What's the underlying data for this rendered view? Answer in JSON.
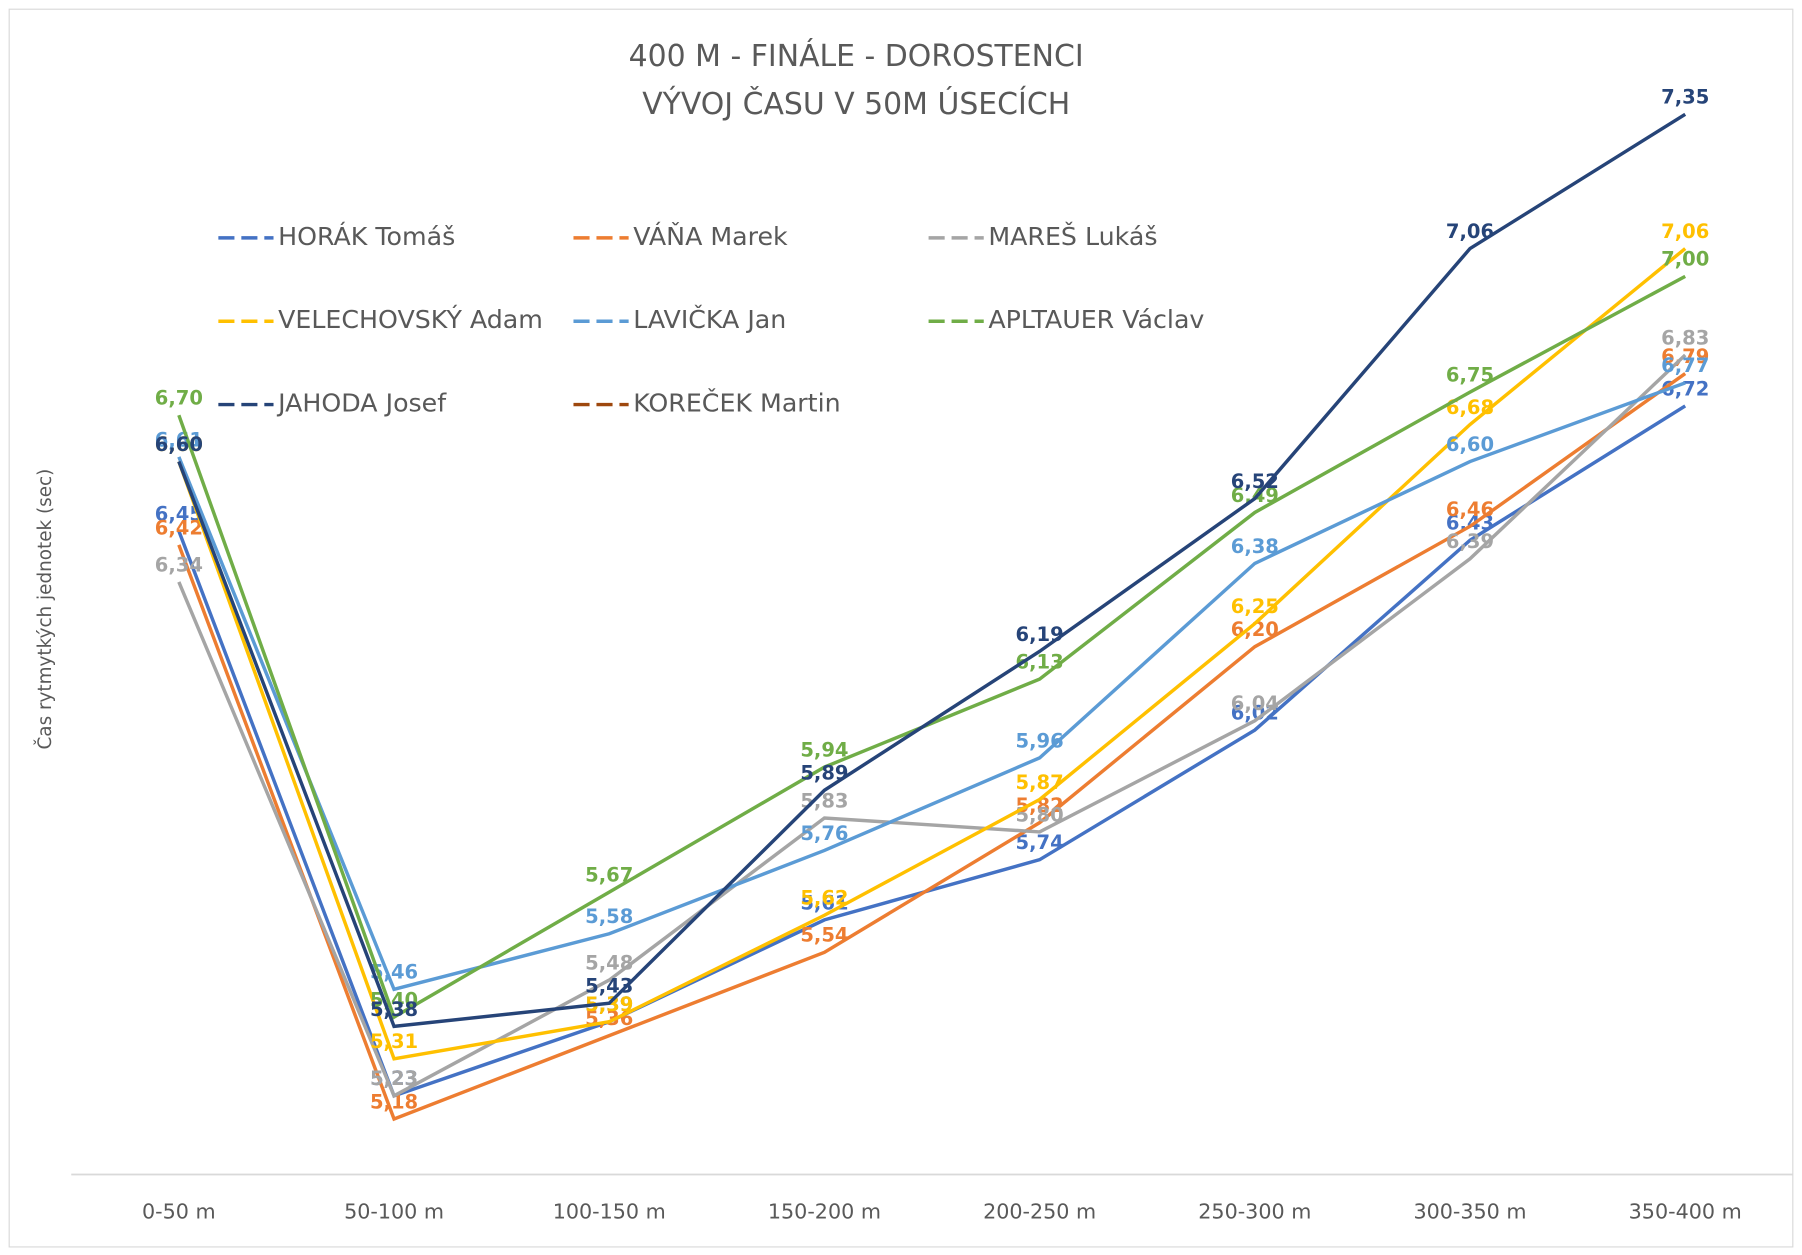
{
  "chart_data": {
    "type": "line",
    "title": "400 M - FINÁLE - DOROSTENCI",
    "subtitle": "VÝVOJ ČASU V 50M ÚSECÍCH",
    "y_label": "Čas rytmytkých jednotek (sec)",
    "categories": [
      "0-50 m",
      "50-100 m",
      "100-150 m",
      "150-200 m",
      "200-250 m",
      "250-300 m",
      "300-350 m",
      "350-400 m"
    ],
    "ylim": [
      5.06,
      7.5
    ],
    "legend": "top-left",
    "series": [
      {
        "name": "HORÁK Tomáš",
        "color": "#4472c4",
        "values": [
          6.45,
          5.23,
          5.39,
          5.61,
          5.74,
          6.02,
          6.43,
          6.72
        ],
        "value_labels": [
          "6,45",
          "5,23",
          "5,39",
          "5,61",
          "5,74",
          "6,02",
          "6,43",
          "6,72"
        ]
      },
      {
        "name": "VÁŇA Marek",
        "color": "#ed7d31",
        "values": [
          6.42,
          5.18,
          5.36,
          5.54,
          5.82,
          6.2,
          6.46,
          6.79
        ],
        "value_labels": [
          "6,42",
          "5,18",
          "5,36",
          "5,54",
          "5,82",
          "6,20",
          "6,46",
          "6,79"
        ]
      },
      {
        "name": "MAREŠ Lukáš",
        "color": "#a5a5a5",
        "values": [
          6.34,
          5.23,
          5.48,
          5.83,
          5.8,
          6.04,
          6.39,
          6.83
        ],
        "value_labels": [
          "6,34",
          "5,23",
          "5,48",
          "5,83",
          "5,80",
          "6,04",
          "6,39",
          "6,83"
        ]
      },
      {
        "name": "VELECHOVSKÝ Adam",
        "color": "#ffc000",
        "values": [
          6.6,
          5.31,
          5.39,
          5.62,
          5.87,
          6.25,
          6.68,
          7.06
        ],
        "value_labels": [
          "6,60",
          "5,31",
          "5,39",
          "5,62",
          "5,87",
          "6,25",
          "6,68",
          "7,06"
        ]
      },
      {
        "name": "LAVIČKA Jan",
        "color": "#5b9bd5",
        "values": [
          6.61,
          5.46,
          5.58,
          5.76,
          5.96,
          6.38,
          6.6,
          6.77
        ],
        "value_labels": [
          "6,61",
          "5,46",
          "5,58",
          "5,76",
          "5,96",
          "6,38",
          "6,60",
          "6,77"
        ]
      },
      {
        "name": "APLTAUER Václav",
        "color": "#70ad47",
        "values": [
          6.7,
          5.4,
          5.67,
          5.94,
          6.13,
          6.49,
          6.75,
          7.0
        ],
        "value_labels": [
          "6,70",
          "5,40",
          "5,67",
          "5,94",
          "6,13",
          "6,49",
          "6,75",
          "7,00"
        ]
      },
      {
        "name": "JAHODA Josef",
        "color": "#264478",
        "values": [
          6.6,
          5.38,
          5.43,
          5.89,
          6.19,
          6.52,
          7.06,
          7.35
        ],
        "value_labels": [
          "6,60",
          "5,38",
          "5,43",
          "5,89",
          "6,19",
          "6,52",
          "7,06",
          "7,35"
        ]
      },
      {
        "name": "KOREČEK Martin",
        "color": "#9e480e",
        "values": [
          null,
          null,
          null,
          null,
          null,
          null,
          null,
          null
        ]
      }
    ]
  }
}
